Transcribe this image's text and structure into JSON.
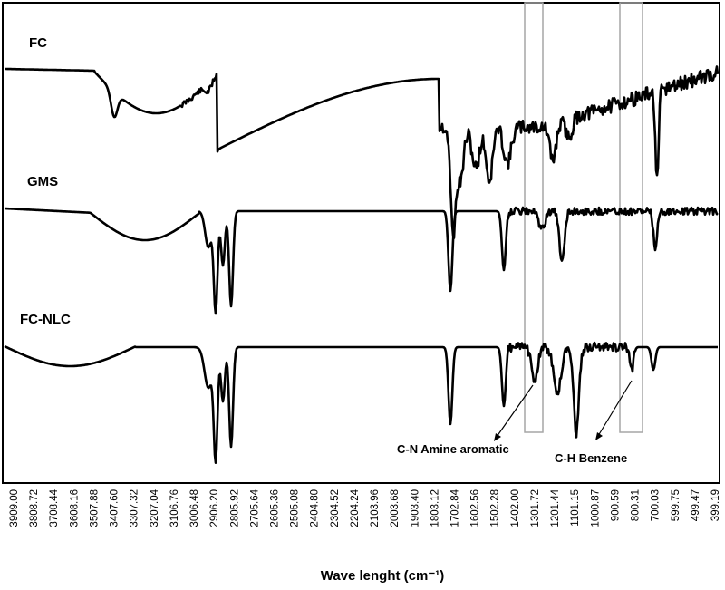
{
  "chart_data": {
    "type": "line",
    "xlabel": "Wave lenght (cm⁻¹)",
    "x_reversed": true,
    "xlim": [
      3909.0,
      399.19
    ],
    "grid": false,
    "legend": "none",
    "tick_labels": [
      "3909.00",
      "3808.72",
      "3708.44",
      "3608.16",
      "3507.88",
      "3407.60",
      "3307.32",
      "3207.04",
      "3106.76",
      "3006.48",
      "2906.20",
      "2805.92",
      "2705.64",
      "2605.36",
      "2505.08",
      "2404.80",
      "2304.52",
      "2204.24",
      "2103.96",
      "2003.68",
      "1903.40",
      "1803.12",
      "1702.84",
      "1602.56",
      "1502.28",
      "1402.00",
      "1301.72",
      "1201.44",
      "1101.15",
      "1000.87",
      "900.59",
      "800.31",
      "700.03",
      "599.75",
      "499.47",
      "399.19"
    ],
    "series": [
      {
        "name": "FC",
        "values": []
      },
      {
        "name": "GMS",
        "values": []
      },
      {
        "name": "FC-NLC",
        "values": []
      }
    ],
    "annotations": [
      {
        "text": "C-N Amine aromatic",
        "x_range": [
          1340,
          1265
        ]
      },
      {
        "text": "C-H Benzene",
        "x_range": [
          880,
          770
        ]
      }
    ]
  }
}
